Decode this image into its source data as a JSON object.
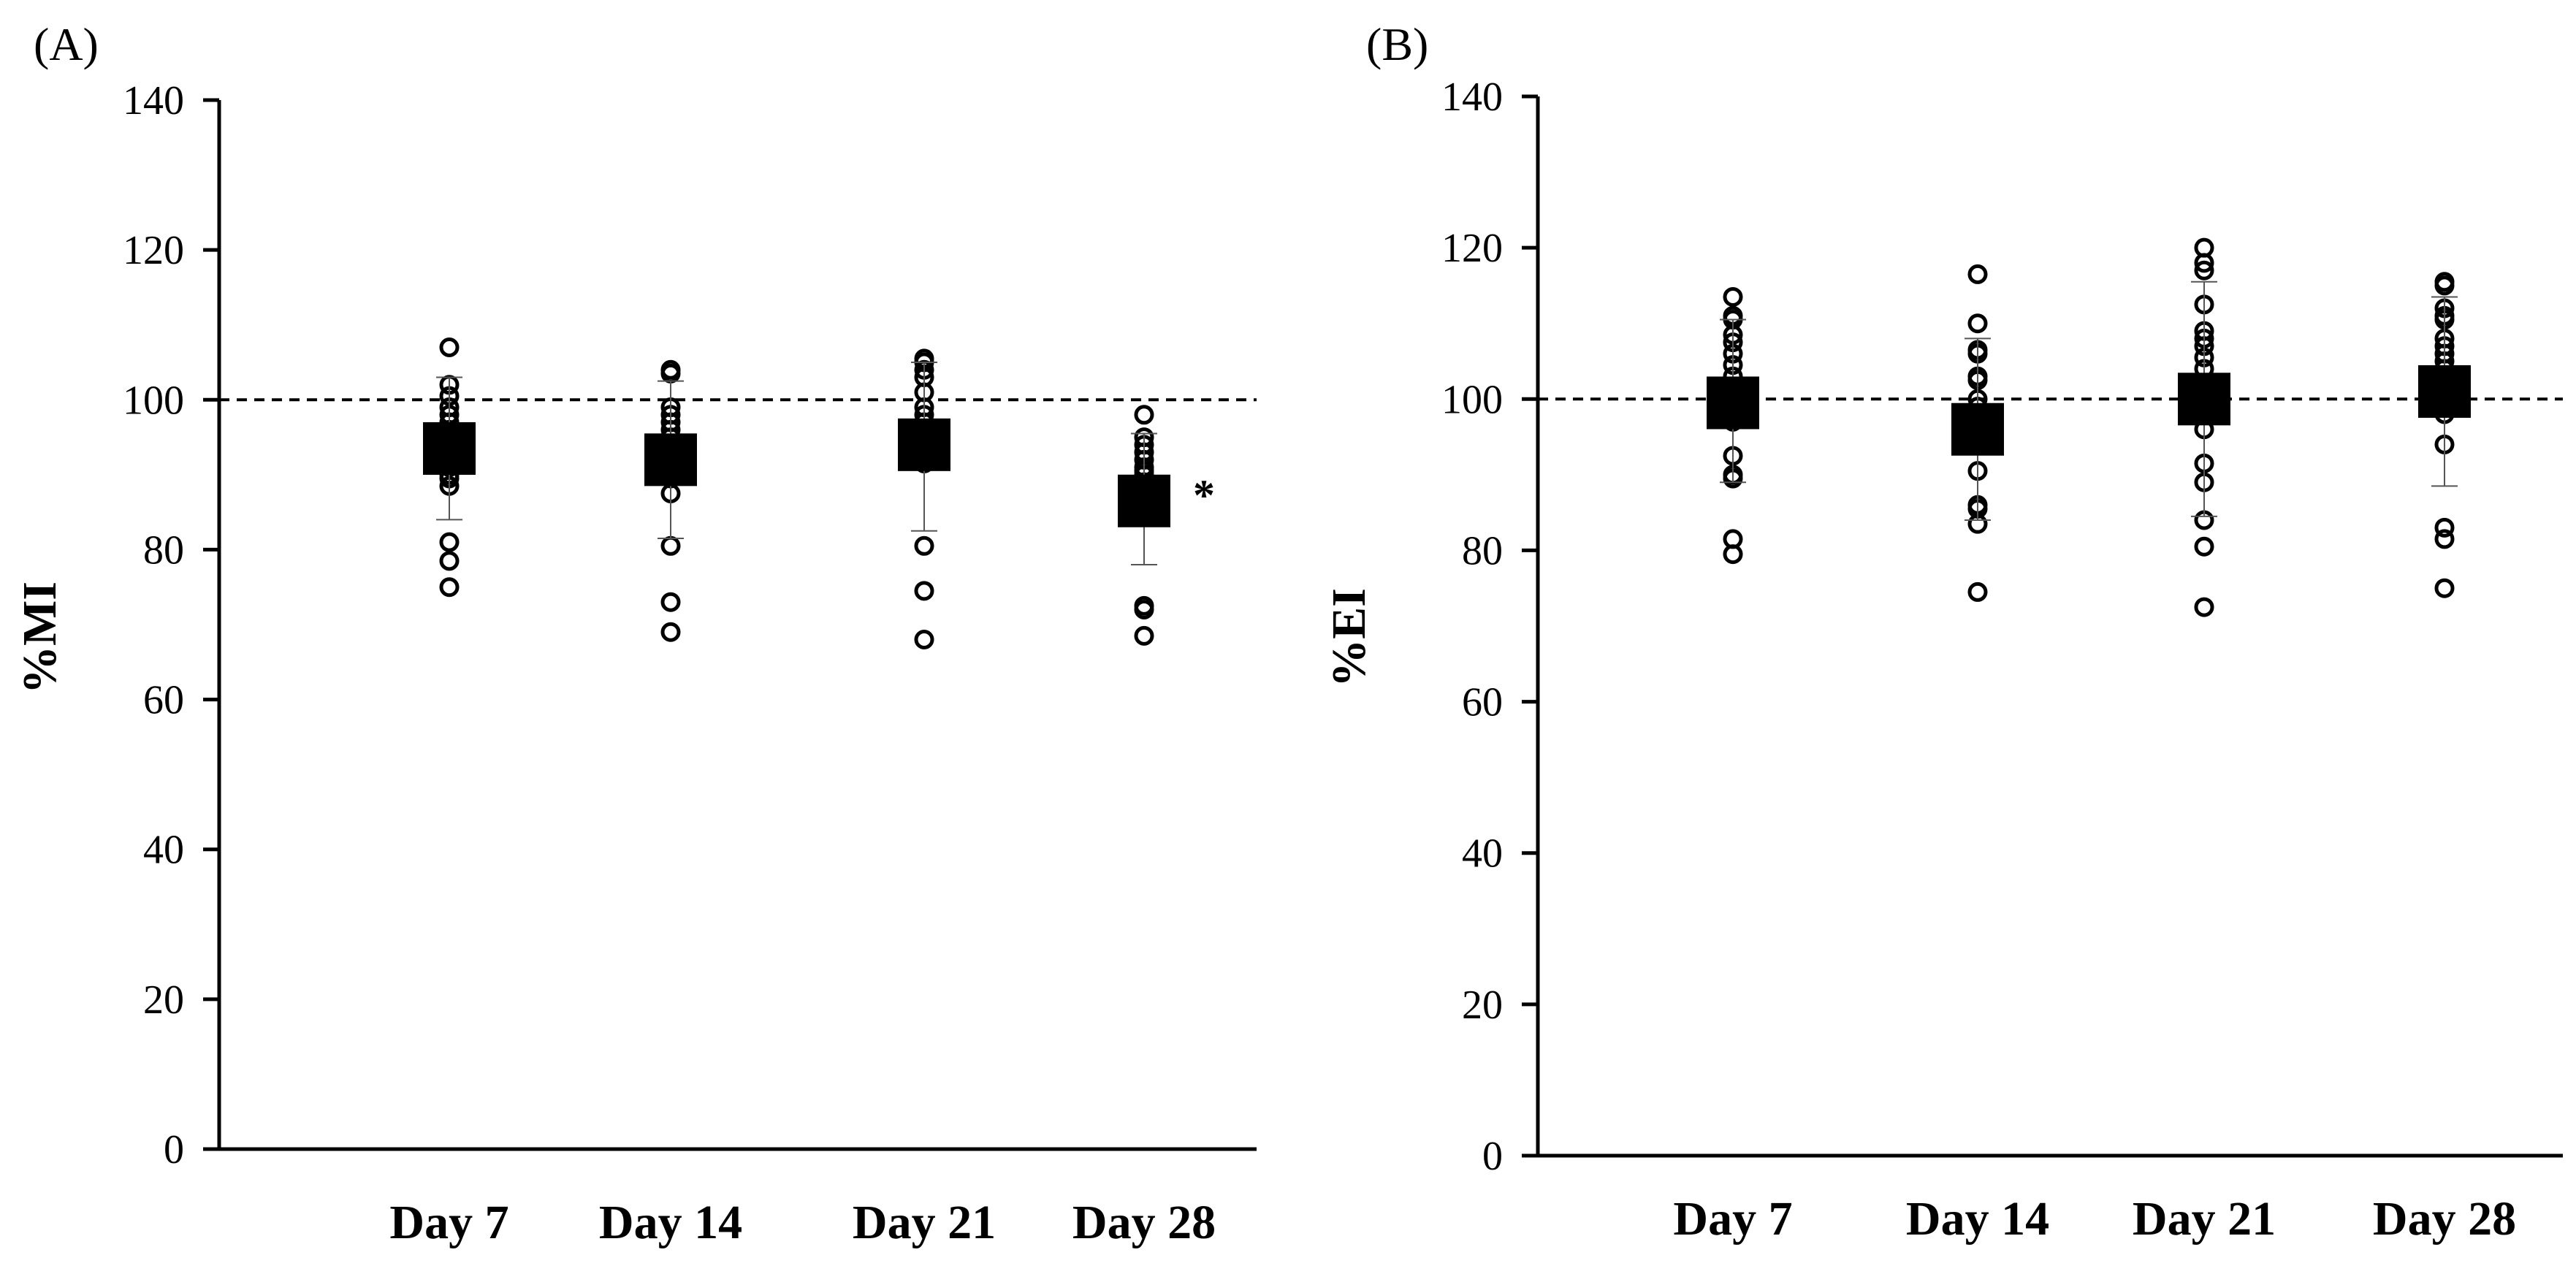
{
  "chart_data": [
    {
      "panel_label": "(A)",
      "type": "scatter",
      "title": "",
      "xlabel": "",
      "ylabel": "%MI",
      "ylim": [
        0,
        140
      ],
      "yticks": [
        "0",
        "20",
        "40",
        "60",
        "80",
        "100",
        "120",
        "140"
      ],
      "reference_line": 100,
      "categories": [
        "Day 7",
        "Day 14",
        "Day 21",
        "Day 28"
      ],
      "means": [
        93.5,
        92,
        94,
        86.5
      ],
      "error_bars": [
        [
          84,
          103
        ],
        [
          81.5,
          102.5
        ],
        [
          82.5,
          105
        ],
        [
          78,
          95.5
        ]
      ],
      "points": [
        [
          107,
          102,
          100.5,
          99,
          98,
          97,
          96,
          95,
          94,
          92,
          91,
          90,
          89.5,
          88.5,
          81,
          78.5,
          75
        ],
        [
          104,
          103.5,
          99,
          98,
          97,
          96,
          95,
          94,
          92,
          90,
          89.5,
          87.5,
          80.5,
          73,
          69
        ],
        [
          105.5,
          105,
          104,
          103,
          101,
          99,
          98,
          97,
          96,
          95,
          94,
          93,
          92,
          91.5,
          80.5,
          74.5,
          68
        ],
        [
          98,
          95,
          94,
          93,
          92,
          91,
          90.5,
          90,
          89,
          88,
          72.5,
          72,
          68.5
        ]
      ],
      "annotations": [
        {
          "category": "Day 28",
          "text": "*"
        }
      ]
    },
    {
      "panel_label": "(B)",
      "type": "scatter",
      "title": "",
      "xlabel": "",
      "ylabel": "%EI",
      "ylim": [
        0,
        140
      ],
      "yticks": [
        "0",
        "20",
        "40",
        "60",
        "80",
        "100",
        "120",
        "140"
      ],
      "reference_line": 100,
      "categories": [
        "Day 7",
        "Day 14",
        "Day 21",
        "Day 28"
      ],
      "means": [
        99.5,
        96,
        100,
        101
      ],
      "error_bars": [
        [
          89,
          110.5
        ],
        [
          84,
          108
        ],
        [
          84.5,
          115.5
        ],
        [
          88.5,
          113.5
        ]
      ],
      "points": [
        [
          113.5,
          111,
          110.5,
          108.5,
          107.5,
          106,
          104.5,
          103,
          101,
          100,
          99,
          98,
          97,
          92.5,
          90,
          89.5,
          81.5,
          79.5
        ],
        [
          116.5,
          110,
          106.5,
          106,
          103,
          102.5,
          100,
          99,
          98,
          97,
          96,
          95,
          94,
          90.5,
          86,
          85.5,
          83.5,
          74.5
        ],
        [
          120,
          118,
          117,
          112.5,
          109,
          108,
          107,
          105.5,
          104,
          102,
          100,
          98,
          96,
          91.5,
          89,
          84,
          80.5,
          72.5
        ],
        [
          115.5,
          115,
          112,
          111,
          110.5,
          108,
          107,
          106,
          105,
          104,
          103,
          102,
          100,
          98,
          94,
          83,
          81.5,
          75
        ]
      ],
      "annotations": []
    }
  ]
}
